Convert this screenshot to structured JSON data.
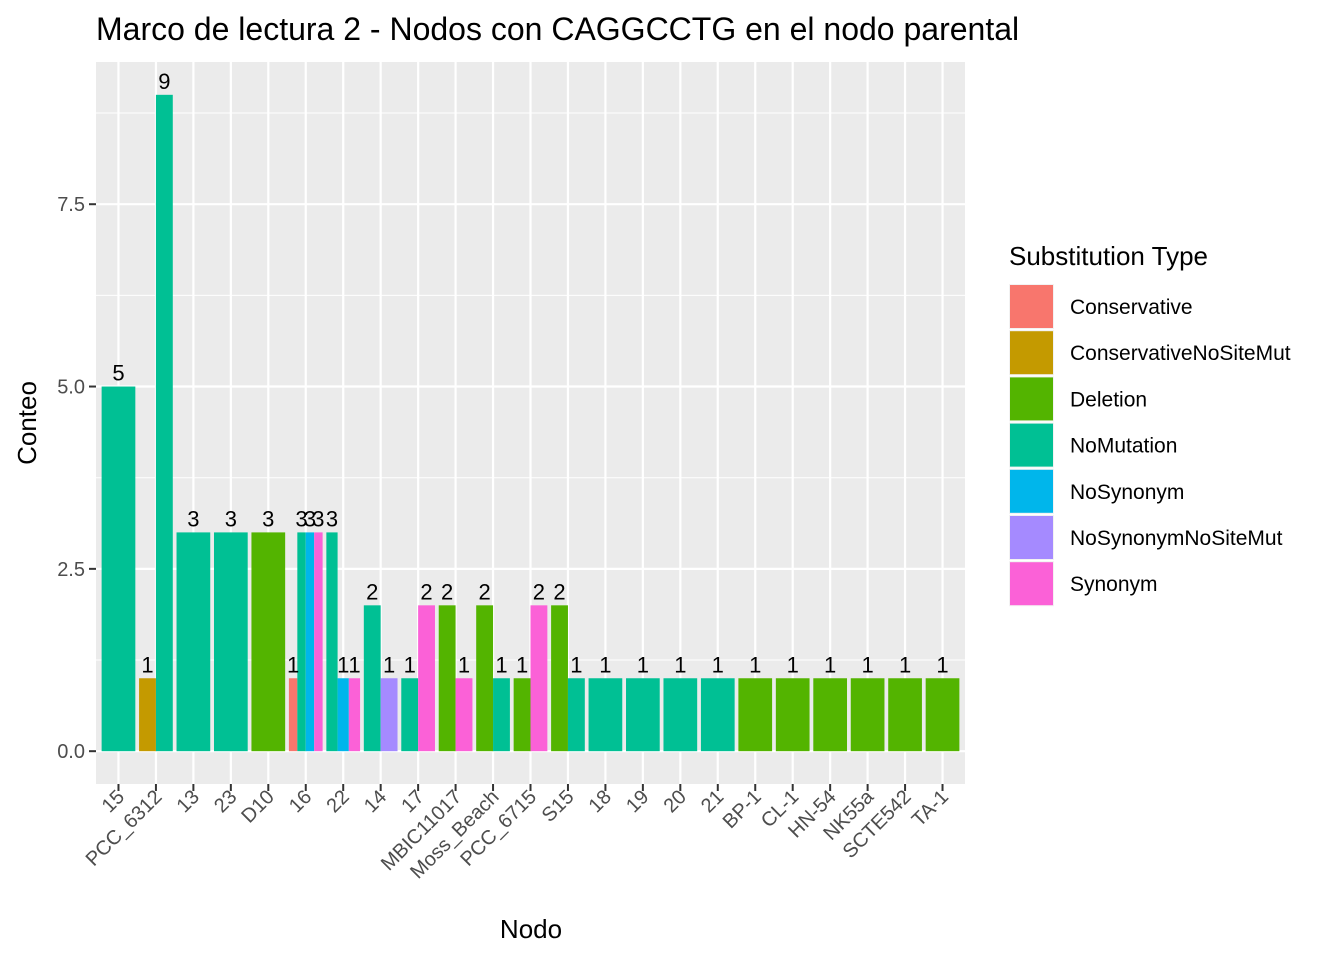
{
  "chart_data": {
    "type": "bar",
    "title": "Marco de lectura 2 - Nodos con CAGGCCTG en el nodo parental",
    "xlabel": "Nodo",
    "ylabel": "Conteo",
    "ylim": [
      -0.45,
      9.45
    ],
    "y_ticks": [
      0.0,
      2.5,
      5.0,
      7.5
    ],
    "y_tick_labels": [
      "0.0",
      "2.5",
      "5.0",
      "7.5"
    ],
    "grid": true,
    "legend": {
      "title": "Substitution Type",
      "position": "right"
    },
    "colors": {
      "Conservative": "#F8766D",
      "ConservativeNoSiteMut": "#C49A00",
      "Deletion": "#53B400",
      "NoMutation": "#00C094",
      "NoSynonym": "#00B6EB",
      "NoSynonymNoSiteMut": "#A58AFF",
      "Synonym": "#FB61D7"
    },
    "series_order": [
      "Conservative",
      "ConservativeNoSiteMut",
      "Deletion",
      "NoMutation",
      "NoSynonym",
      "NoSynonymNoSiteMut",
      "Synonym"
    ],
    "categories": [
      "15",
      "PCC_6312",
      "13",
      "23",
      "D10",
      "16",
      "22",
      "14",
      "17",
      "MBIC11017",
      "Moss_Beach",
      "PCC_6715",
      "S15",
      "18",
      "19",
      "20",
      "21",
      "BP-1",
      "CL-1",
      "HN-54",
      "NK55a",
      "SCTE542",
      "TA-1"
    ],
    "bars": [
      {
        "node": "15",
        "values": {
          "NoMutation": 5
        }
      },
      {
        "node": "PCC_6312",
        "values": {
          "ConservativeNoSiteMut": 1,
          "NoMutation": 9
        }
      },
      {
        "node": "13",
        "values": {
          "NoMutation": 3
        }
      },
      {
        "node": "23",
        "values": {
          "NoMutation": 3
        }
      },
      {
        "node": "D10",
        "values": {
          "Deletion": 3
        }
      },
      {
        "node": "16",
        "values": {
          "Conservative": 1,
          "NoMutation": 3,
          "NoSynonym": 3,
          "Synonym": 3
        }
      },
      {
        "node": "22",
        "values": {
          "NoMutation": 3,
          "NoSynonym": 1,
          "Synonym": 1
        }
      },
      {
        "node": "14",
        "values": {
          "NoMutation": 2,
          "NoSynonymNoSiteMut": 1
        }
      },
      {
        "node": "17",
        "values": {
          "NoMutation": 1,
          "Synonym": 2
        }
      },
      {
        "node": "MBIC11017",
        "values": {
          "Deletion": 2,
          "Synonym": 1
        }
      },
      {
        "node": "Moss_Beach",
        "values": {
          "Deletion": 2,
          "NoMutation": 1
        }
      },
      {
        "node": "PCC_6715",
        "values": {
          "Deletion": 1,
          "Synonym": 2
        }
      },
      {
        "node": "S15",
        "values": {
          "Deletion": 2,
          "NoMutation": 1
        }
      },
      {
        "node": "18",
        "values": {
          "NoMutation": 1
        }
      },
      {
        "node": "19",
        "values": {
          "NoMutation": 1
        }
      },
      {
        "node": "20",
        "values": {
          "NoMutation": 1
        }
      },
      {
        "node": "21",
        "values": {
          "NoMutation": 1
        }
      },
      {
        "node": "BP-1",
        "values": {
          "Deletion": 1
        }
      },
      {
        "node": "CL-1",
        "values": {
          "Deletion": 1
        }
      },
      {
        "node": "HN-54",
        "values": {
          "Deletion": 1
        }
      },
      {
        "node": "NK55a",
        "values": {
          "Deletion": 1
        }
      },
      {
        "node": "SCTE542",
        "values": {
          "Deletion": 1
        }
      },
      {
        "node": "TA-1",
        "values": {
          "Deletion": 1
        }
      }
    ]
  }
}
